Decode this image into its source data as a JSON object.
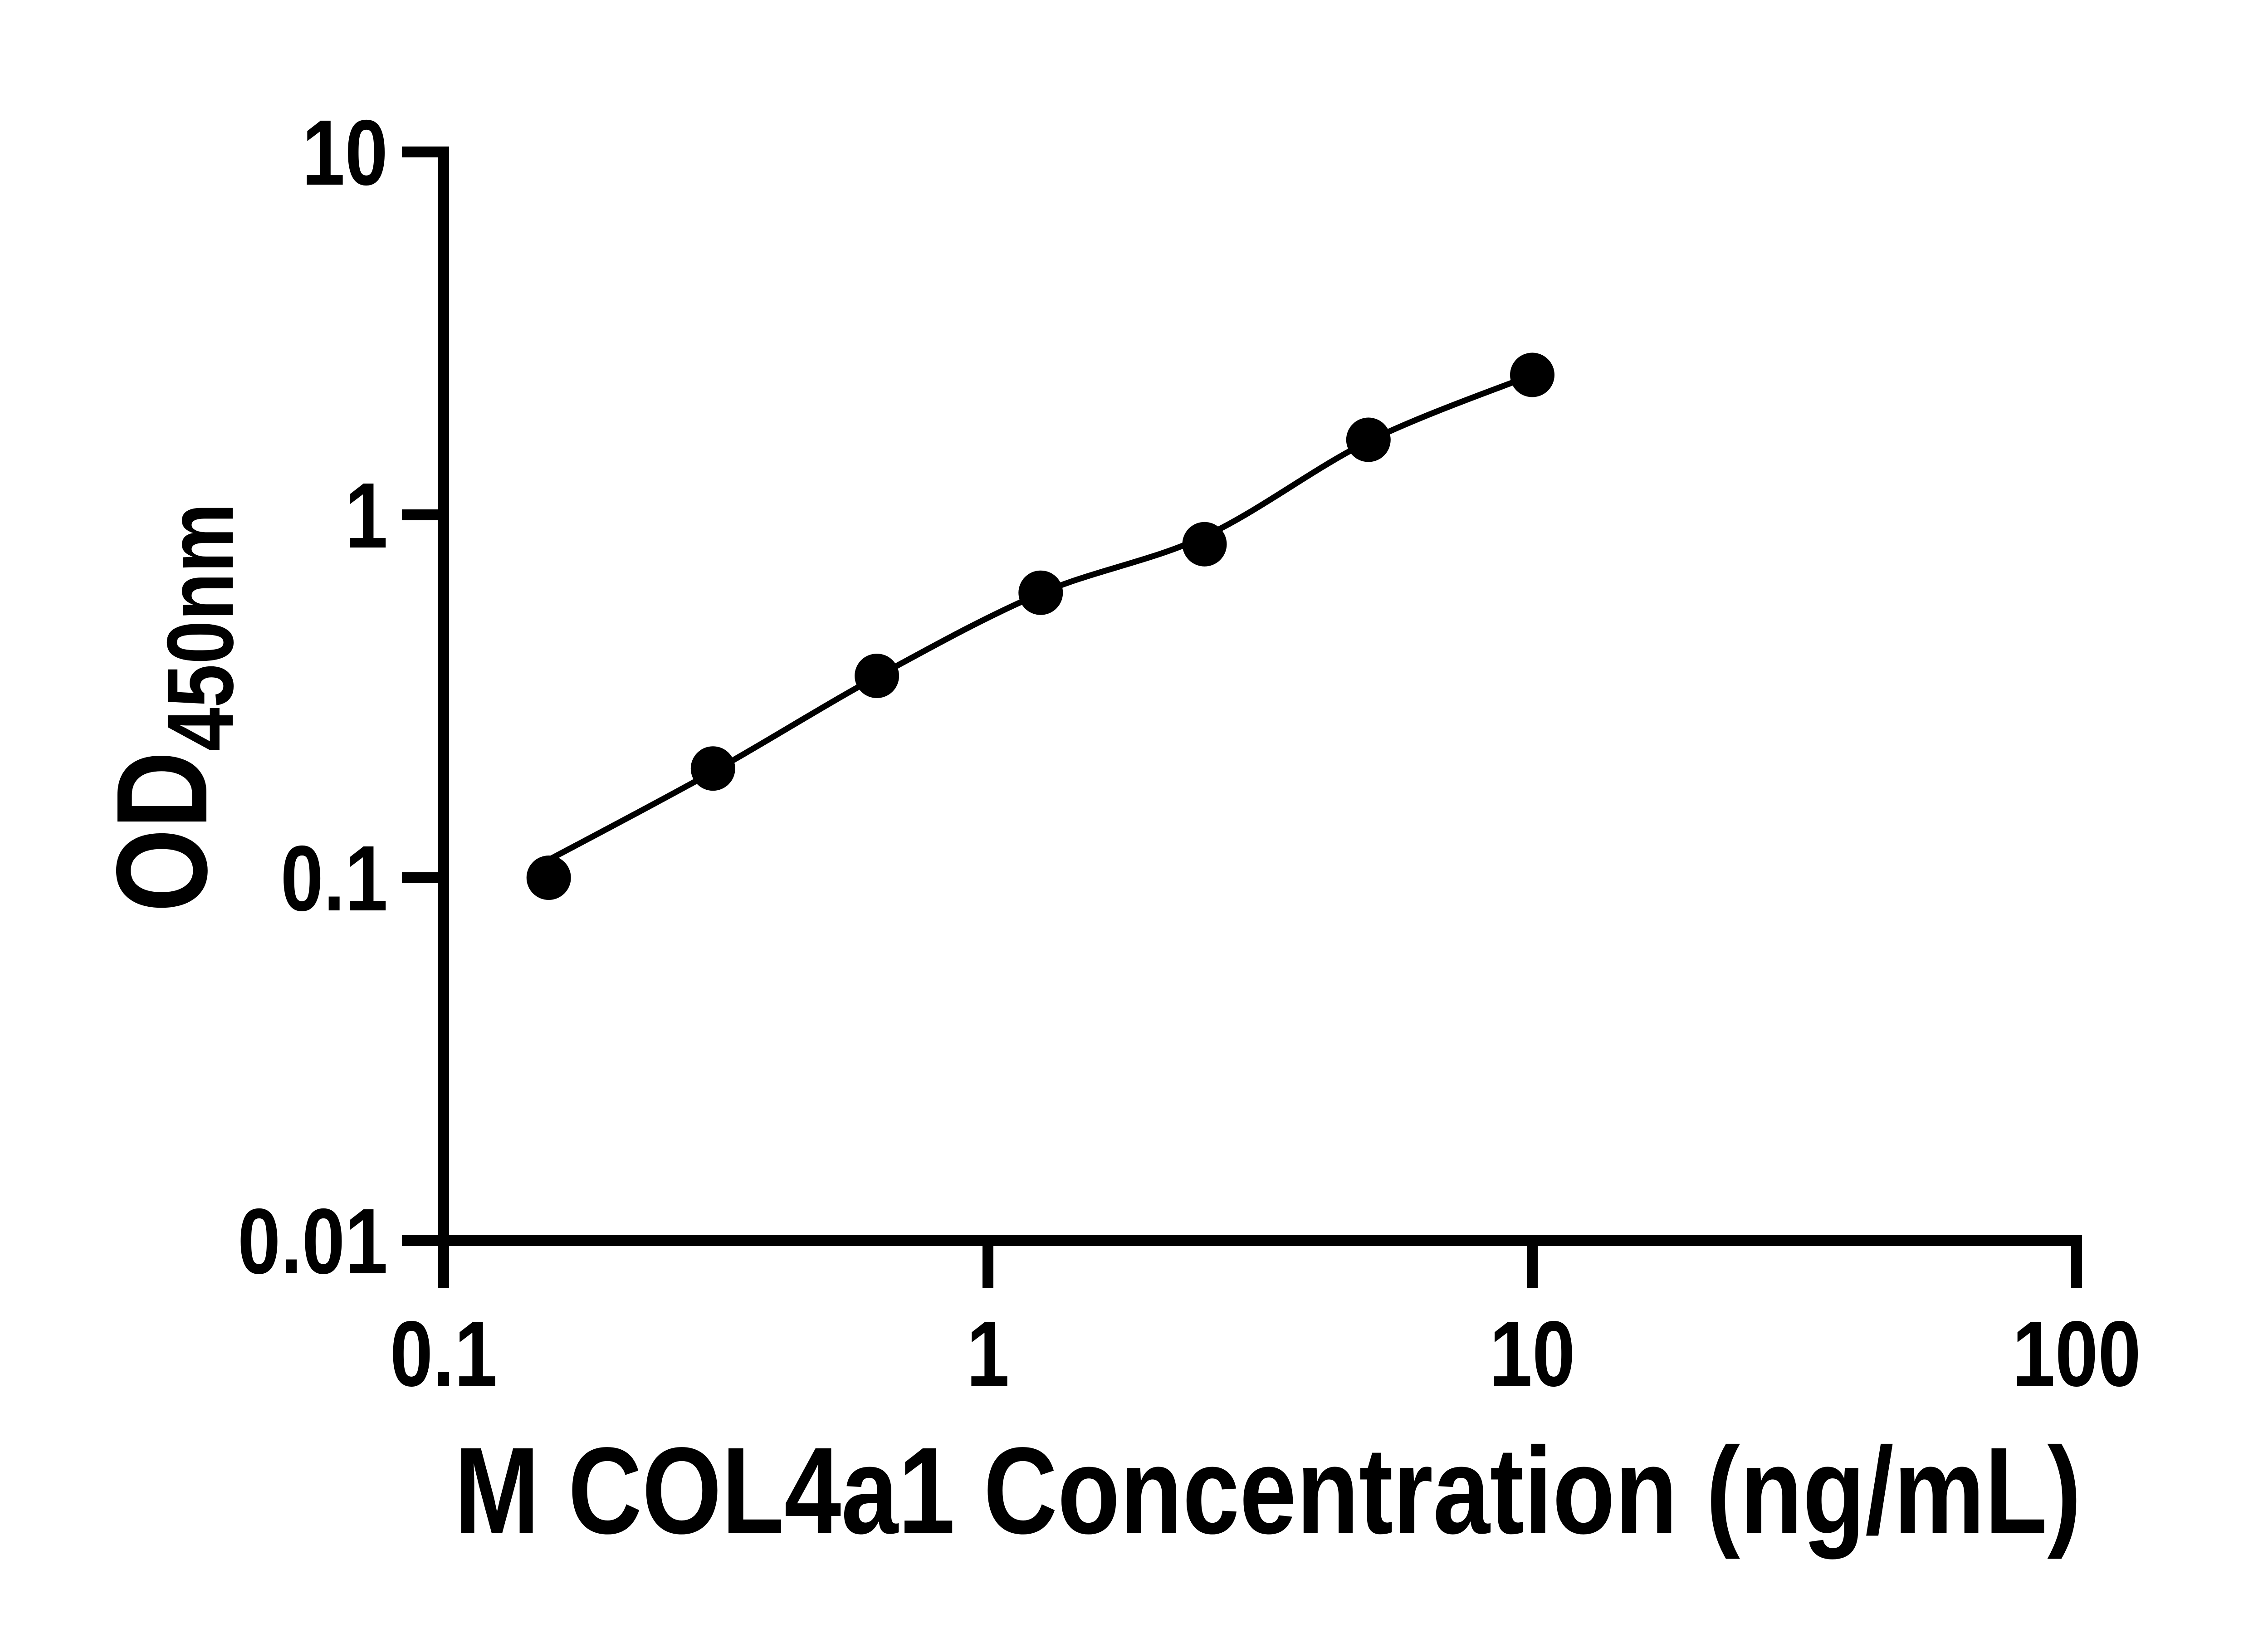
{
  "figure": {
    "background": "#ffffff",
    "ink": "#000000"
  },
  "chart_data": {
    "type": "scatter",
    "title": "",
    "xlabel": "M COL4a1 Concentration (ng/mL)",
    "ylabel_main": "OD",
    "ylabel_sub": "450nm",
    "x_scale": "log",
    "y_scale": "log",
    "xlim": [
      0.1,
      100
    ],
    "ylim": [
      0.01,
      10
    ],
    "grid": false,
    "legend": "none",
    "x_ticks": [
      {
        "value": 0.1,
        "label": "0.1"
      },
      {
        "value": 1,
        "label": "1"
      },
      {
        "value": 10,
        "label": "10"
      },
      {
        "value": 100,
        "label": "100"
      }
    ],
    "y_ticks": [
      {
        "value": 10,
        "label": "10"
      },
      {
        "value": 1,
        "label": "1"
      },
      {
        "value": 0.1,
        "label": "0.1"
      },
      {
        "value": 0.01,
        "label": "0.01"
      }
    ],
    "series": [
      {
        "name": "standard-curve-points",
        "marker": "filled-circle",
        "color": "#000000",
        "points": [
          {
            "x": 0.156,
            "y": 0.1
          },
          {
            "x": 0.3125,
            "y": 0.2
          },
          {
            "x": 0.625,
            "y": 0.36
          },
          {
            "x": 1.25,
            "y": 0.61
          },
          {
            "x": 2.5,
            "y": 0.83
          },
          {
            "x": 5,
            "y": 1.61
          },
          {
            "x": 10,
            "y": 2.43
          }
        ]
      }
    ],
    "trend_line": {
      "color": "#000000",
      "points": [
        {
          "x": 0.156,
          "y": 0.112
        },
        {
          "x": 0.3125,
          "y": 0.196
        },
        {
          "x": 0.625,
          "y": 0.358
        },
        {
          "x": 1.25,
          "y": 0.608
        },
        {
          "x": 2.5,
          "y": 0.872
        },
        {
          "x": 5,
          "y": 1.595
        },
        {
          "x": 10,
          "y": 2.43
        }
      ]
    }
  }
}
